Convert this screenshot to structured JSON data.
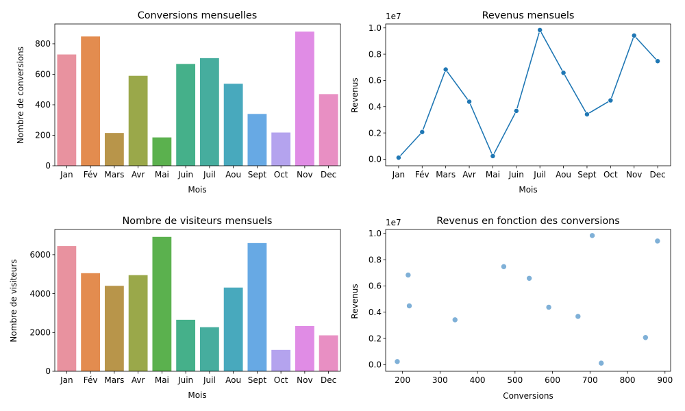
{
  "months": [
    "Jan",
    "Fév",
    "Mars",
    "Avr",
    "Mai",
    "Juin",
    "Juil",
    "Aou",
    "Sept",
    "Oct",
    "Nov",
    "Dec"
  ],
  "palette": [
    "#e8929f",
    "#e38c4f",
    "#b8954a",
    "#9aa84a",
    "#5bb14e",
    "#45b08a",
    "#46ad9e",
    "#48a9bd",
    "#67a9e4",
    "#b4a3ee",
    "#e08ce5",
    "#e88fc3"
  ],
  "line_color": "#1f77b4",
  "scatter_color": "#7fb0d7",
  "chart_data": [
    {
      "type": "bar",
      "title": "Conversions mensuelles",
      "xlabel": "Mois",
      "ylabel": "Nombre de conversions",
      "ylim": [
        0,
        930
      ],
      "yticks": [
        "0",
        "200",
        "400",
        "600",
        "800"
      ],
      "ytick_values": [
        0,
        200,
        400,
        600,
        800
      ],
      "categories": [
        "Jan",
        "Fév",
        "Mars",
        "Avr",
        "Mai",
        "Juin",
        "Juil",
        "Aou",
        "Sept",
        "Oct",
        "Nov",
        "Dec"
      ],
      "values": [
        730,
        848,
        215,
        590,
        186,
        668,
        706,
        538,
        340,
        218,
        880,
        470
      ]
    },
    {
      "type": "line",
      "title": "Revenus mensuels",
      "xlabel": "Mois",
      "ylabel": "Revenus",
      "offset_label": "1e7",
      "ylim": [
        -0.05,
        1.03
      ],
      "yticks": [
        "0.0",
        "0.2",
        "0.4",
        "0.6",
        "0.8",
        "1.0"
      ],
      "ytick_values": [
        0,
        0.2,
        0.4,
        0.6,
        0.8,
        1.0
      ],
      "categories": [
        "Jan",
        "Fév",
        "Mars",
        "Avr",
        "Mai",
        "Juin",
        "Juil",
        "Aou",
        "Sept",
        "Oct",
        "Nov",
        "Dec"
      ],
      "values": [
        0.012,
        0.207,
        0.683,
        0.438,
        0.024,
        0.368,
        0.984,
        0.658,
        0.342,
        0.448,
        0.942,
        0.747
      ]
    },
    {
      "type": "bar",
      "title": "Nombre de visiteurs mensuels",
      "xlabel": "Mois",
      "ylabel": "Nombre de visiteurs",
      "ylim": [
        0,
        7300
      ],
      "yticks": [
        "0",
        "2000",
        "4000",
        "6000"
      ],
      "ytick_values": [
        0,
        2000,
        4000,
        6000
      ],
      "categories": [
        "Jan",
        "Fév",
        "Mars",
        "Avr",
        "Mai",
        "Juin",
        "Juil",
        "Aou",
        "Sept",
        "Oct",
        "Nov",
        "Dec"
      ],
      "values": [
        6450,
        5050,
        4400,
        4950,
        6920,
        2650,
        2270,
        4310,
        6600,
        1100,
        2330,
        1850
      ]
    },
    {
      "type": "scatter",
      "title": "Revenus en fonction des conversions",
      "xlabel": "Conversions",
      "ylabel": "Revenus",
      "offset_label": "1e7",
      "xlim": [
        155,
        915
      ],
      "ylim": [
        -0.05,
        1.03
      ],
      "xticks": [
        "200",
        "300",
        "400",
        "500",
        "600",
        "700",
        "800",
        "900"
      ],
      "xtick_values": [
        200,
        300,
        400,
        500,
        600,
        700,
        800,
        900
      ],
      "yticks": [
        "0.0",
        "0.2",
        "0.4",
        "0.6",
        "0.8",
        "1.0"
      ],
      "ytick_values": [
        0,
        0.2,
        0.4,
        0.6,
        0.8,
        1.0
      ],
      "points": [
        {
          "x": 730,
          "y": 0.012
        },
        {
          "x": 848,
          "y": 0.207
        },
        {
          "x": 215,
          "y": 0.683
        },
        {
          "x": 590,
          "y": 0.438
        },
        {
          "x": 186,
          "y": 0.024
        },
        {
          "x": 668,
          "y": 0.368
        },
        {
          "x": 706,
          "y": 0.984
        },
        {
          "x": 538,
          "y": 0.658
        },
        {
          "x": 340,
          "y": 0.342
        },
        {
          "x": 218,
          "y": 0.448
        },
        {
          "x": 880,
          "y": 0.942
        },
        {
          "x": 470,
          "y": 0.747
        }
      ]
    }
  ]
}
